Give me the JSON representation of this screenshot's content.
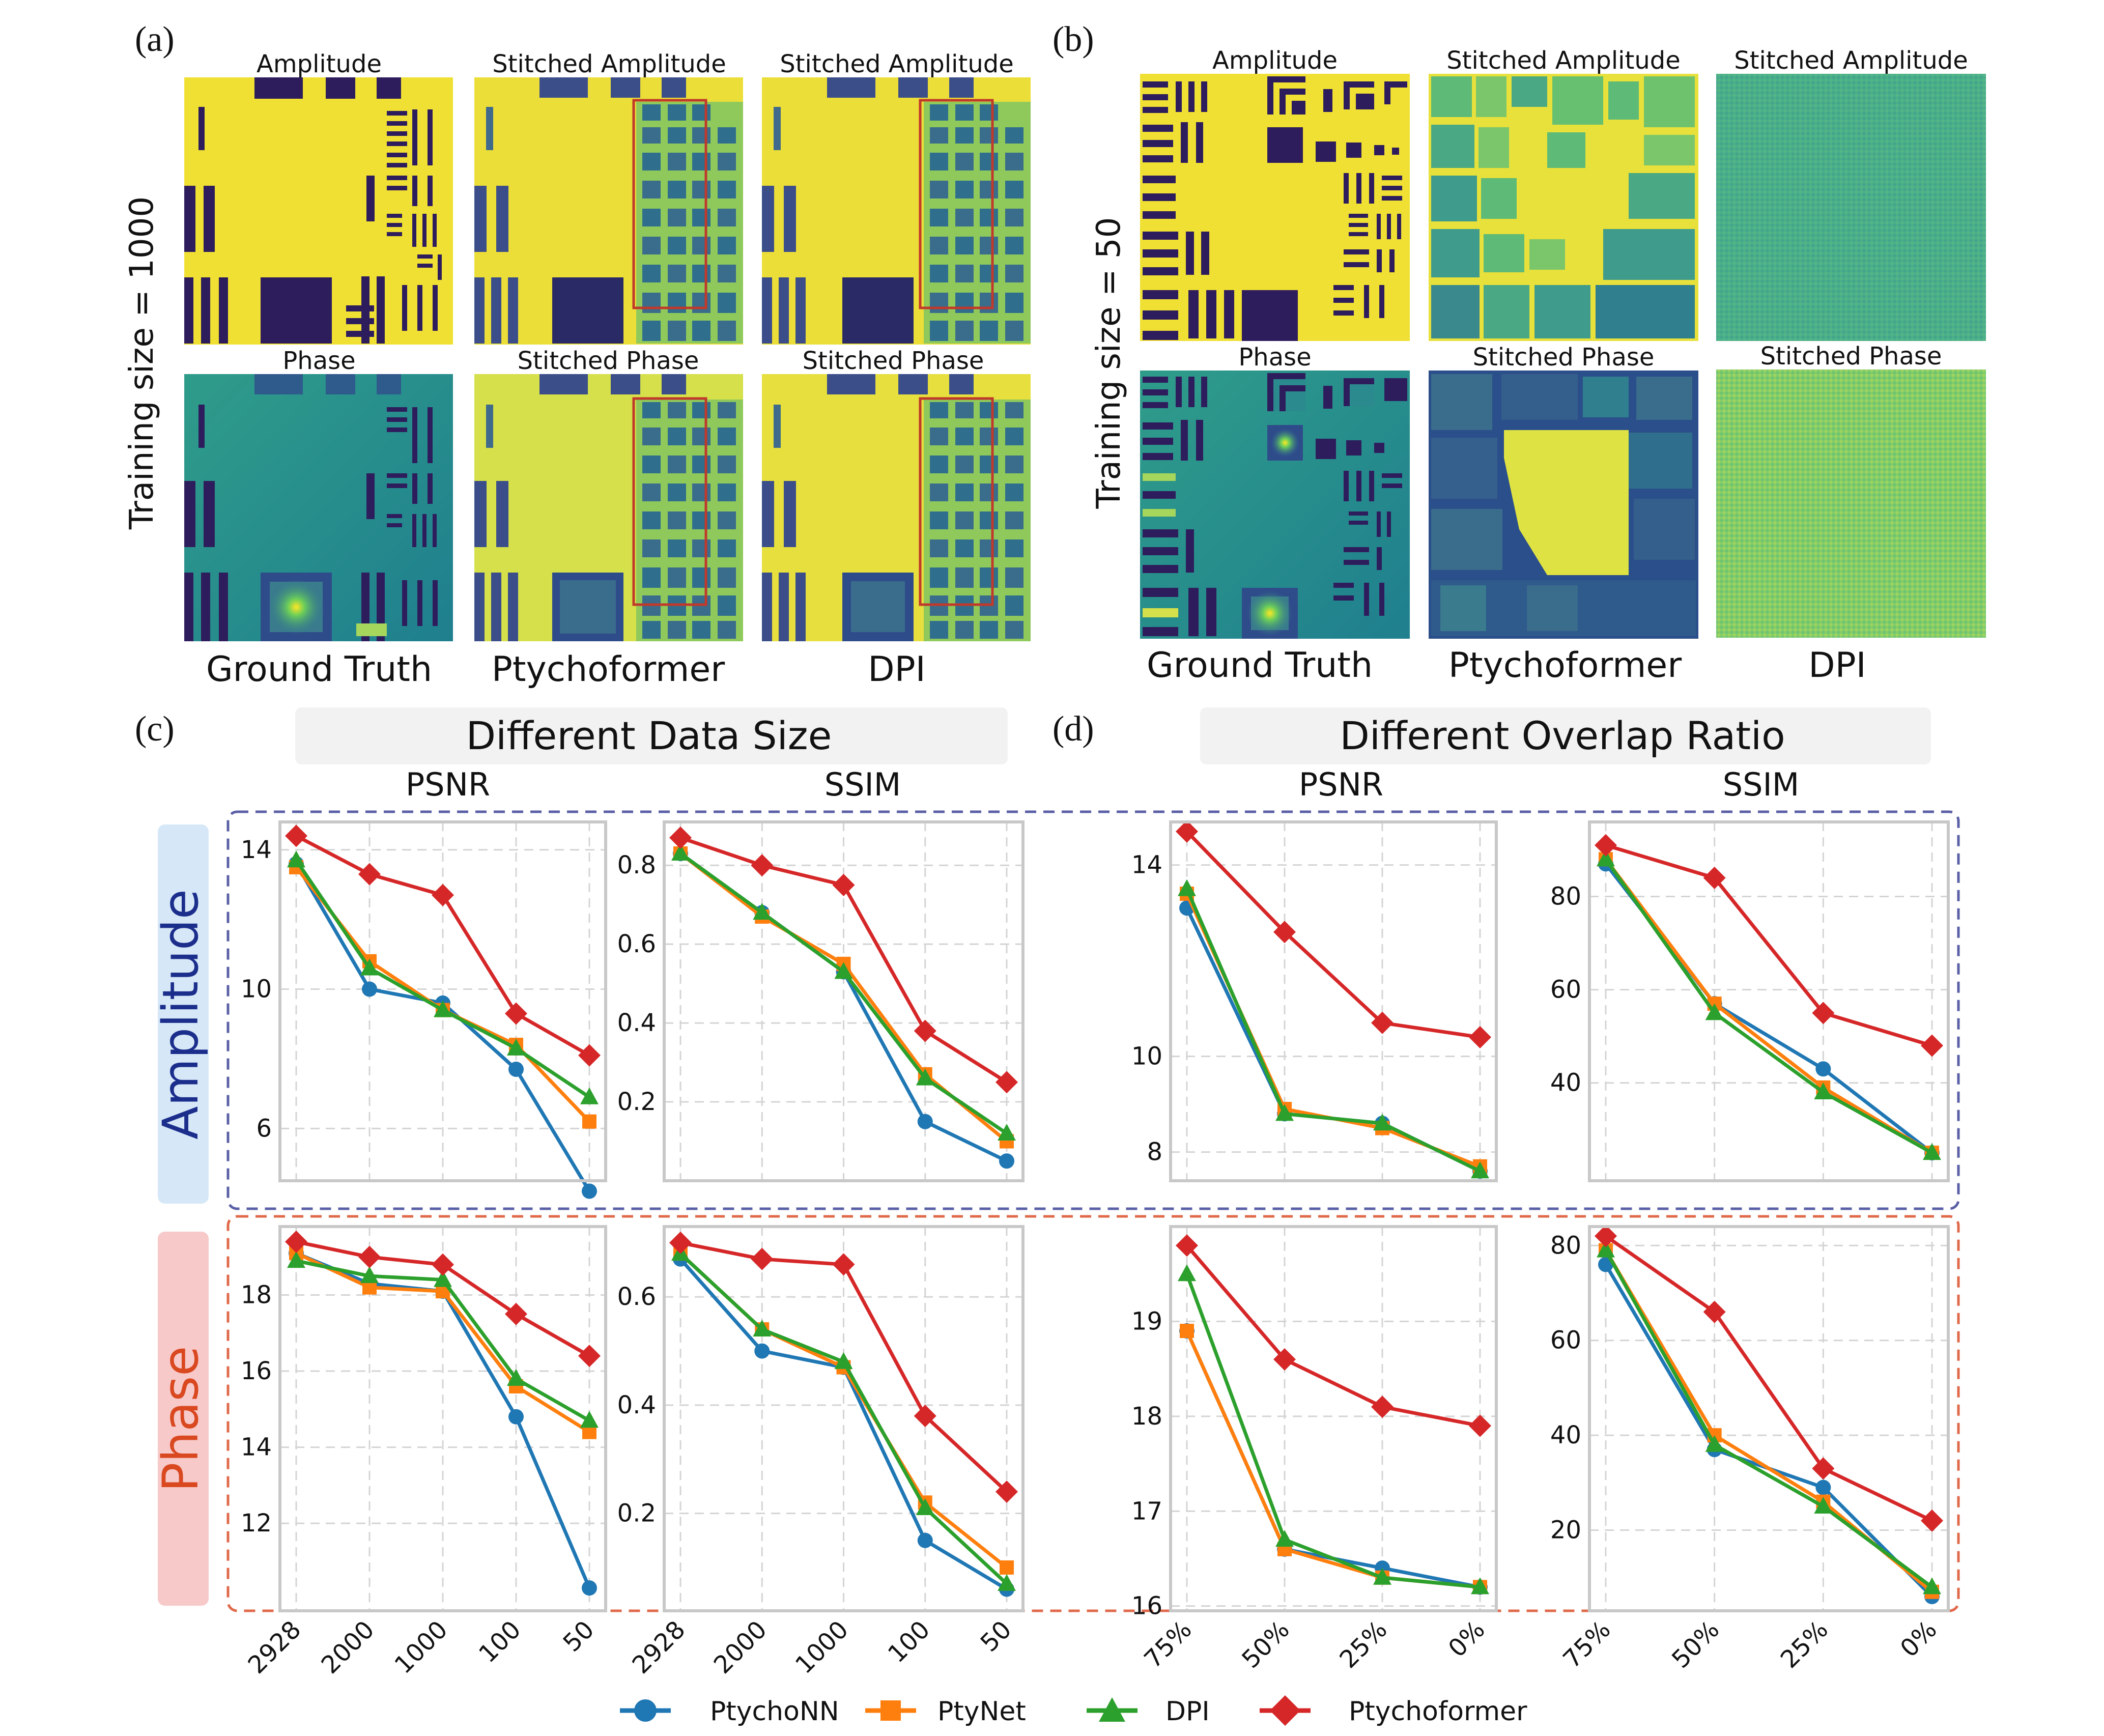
{
  "panels": {
    "a": {
      "letter": "(a)",
      "training_label": "Training size = 1000",
      "titles": {
        "gt_amp": "Amplitude",
        "pf_amp": "Stitched Amplitude",
        "dpi_amp": "Stitched Amplitude",
        "gt_ph": "Phase",
        "pf_ph": "Stitched Phase",
        "dpi_ph": "Stitched Phase"
      },
      "methods": [
        "Ground Truth",
        "Ptychoformer",
        "DPI"
      ]
    },
    "b": {
      "letter": "(b)",
      "training_label": "Training size = 50",
      "titles": {
        "gt_amp": "Amplitude",
        "pf_amp": "Stitched Amplitude",
        "dpi_amp": "Stitched Amplitude",
        "gt_ph": "Phase",
        "pf_ph": "Stitched Phase",
        "dpi_ph": "Stitched Phase"
      },
      "methods": [
        "Ground Truth",
        "Ptychoformer",
        "DPI"
      ]
    },
    "c": {
      "letter": "(c)",
      "header": "Different Data Size"
    },
    "d": {
      "letter": "(d)",
      "header": "Different Overlap Ratio"
    }
  },
  "row_labels": {
    "amplitude": "Amplitude",
    "phase": "Phase"
  },
  "metric_labels": [
    "PSNR",
    "SSIM",
    "PSNR",
    "SSIM"
  ],
  "colors": {
    "PtychoNN": "#1f77b4",
    "PtyNet": "#ff7f0e",
    "DPI": "#2ca02c",
    "Ptychoformer": "#d62728",
    "amp_box": "#5a5fa6",
    "phase_box": "#e0694a",
    "amp_tab": "#d6e8f7",
    "phase_tab": "#f7c9c9",
    "header_bg": "#f2f2f2",
    "axes_frame": "#c8c8c8",
    "grid": "#d4d4d4"
  },
  "legend": [
    {
      "name": "PtychoNN",
      "marker": "circle"
    },
    {
      "name": "PtyNet",
      "marker": "square"
    },
    {
      "name": "DPI",
      "marker": "triangle"
    },
    {
      "name": "Ptychoformer",
      "marker": "diamond"
    }
  ],
  "chart_data": [
    {
      "id": "c-amp-psnr",
      "type": "line",
      "title": "PSNR",
      "categories": [
        "2928",
        "2000",
        "1000",
        "100",
        "50"
      ],
      "ylim": [
        4.5,
        14.8
      ],
      "yticks": [
        6,
        10,
        14
      ],
      "grid": true,
      "series": [
        {
          "name": "PtychoNN",
          "values": [
            13.6,
            10.0,
            9.6,
            7.7,
            4.2
          ]
        },
        {
          "name": "PtyNet",
          "values": [
            13.5,
            10.8,
            9.4,
            8.4,
            6.2
          ]
        },
        {
          "name": "DPI",
          "values": [
            13.7,
            10.6,
            9.4,
            8.3,
            6.9
          ]
        },
        {
          "name": "Ptychoformer",
          "values": [
            14.4,
            13.3,
            12.7,
            9.3,
            8.1
          ]
        }
      ]
    },
    {
      "id": "c-amp-ssim",
      "type": "line",
      "title": "SSIM",
      "categories": [
        "2928",
        "2000",
        "1000",
        "100",
        "50"
      ],
      "ylim": [
        0.0,
        0.91
      ],
      "yticks": [
        0.2,
        0.4,
        0.6,
        0.8
      ],
      "grid": true,
      "series": [
        {
          "name": "PtychoNN",
          "values": [
            0.83,
            0.68,
            0.53,
            0.15,
            0.05
          ]
        },
        {
          "name": "PtyNet",
          "values": [
            0.83,
            0.67,
            0.55,
            0.27,
            0.1
          ]
        },
        {
          "name": "DPI",
          "values": [
            0.83,
            0.68,
            0.53,
            0.26,
            0.12
          ]
        },
        {
          "name": "Ptychoformer",
          "values": [
            0.87,
            0.8,
            0.75,
            0.38,
            0.25
          ]
        }
      ]
    },
    {
      "id": "d-amp-psnr",
      "type": "line",
      "title": "PSNR",
      "categories": [
        "75%",
        "50%",
        "25%",
        "0%"
      ],
      "ylim": [
        7.4,
        14.9
      ],
      "yticks": [
        8,
        10,
        14
      ],
      "grid": true,
      "series": [
        {
          "name": "PtychoNN",
          "values": [
            13.1,
            8.8,
            8.6,
            7.6
          ]
        },
        {
          "name": "PtyNet",
          "values": [
            13.4,
            8.9,
            8.5,
            7.7
          ]
        },
        {
          "name": "DPI",
          "values": [
            13.5,
            8.8,
            8.6,
            7.6
          ]
        },
        {
          "name": "Ptychoformer",
          "values": [
            14.7,
            12.6,
            10.7,
            10.4
          ]
        }
      ]
    },
    {
      "id": "d-amp-ssim",
      "type": "line",
      "title": "SSIM",
      "categories": [
        "75%",
        "50%",
        "25%",
        "0%"
      ],
      "ylim": [
        19,
        96
      ],
      "yticks": [
        40,
        60,
        80
      ],
      "grid": true,
      "series": [
        {
          "name": "PtychoNN",
          "values": [
            87,
            57,
            43,
            25
          ]
        },
        {
          "name": "PtyNet",
          "values": [
            88,
            57,
            39,
            25
          ]
        },
        {
          "name": "DPI",
          "values": [
            88,
            55,
            38,
            25
          ]
        },
        {
          "name": "Ptychoformer",
          "values": [
            91,
            84,
            55,
            48
          ]
        }
      ]
    },
    {
      "id": "c-ph-psnr",
      "type": "line",
      "title": "PSNR",
      "categories": [
        "2928",
        "2000",
        "1000",
        "100",
        "50"
      ],
      "ylim": [
        9.7,
        19.8
      ],
      "yticks": [
        12,
        14,
        16,
        18
      ],
      "grid": true,
      "series": [
        {
          "name": "PtychoNN",
          "values": [
            19.1,
            18.3,
            18.1,
            14.8,
            10.3
          ]
        },
        {
          "name": "PtyNet",
          "values": [
            19.1,
            18.2,
            18.1,
            15.6,
            14.4
          ]
        },
        {
          "name": "DPI",
          "values": [
            18.9,
            18.5,
            18.4,
            15.8,
            14.7
          ]
        },
        {
          "name": "Ptychoformer",
          "values": [
            19.4,
            19.0,
            18.8,
            17.5,
            16.4
          ]
        }
      ]
    },
    {
      "id": "c-ph-ssim",
      "type": "line",
      "title": "SSIM",
      "categories": [
        "2928",
        "2000",
        "1000",
        "100",
        "50"
      ],
      "ylim": [
        0.02,
        0.73
      ],
      "yticks": [
        0.2,
        0.4,
        0.6
      ],
      "grid": true,
      "series": [
        {
          "name": "PtychoNN",
          "values": [
            0.67,
            0.5,
            0.47,
            0.15,
            0.06
          ]
        },
        {
          "name": "PtyNet",
          "values": [
            0.68,
            0.54,
            0.47,
            0.22,
            0.1
          ]
        },
        {
          "name": "DPI",
          "values": [
            0.68,
            0.54,
            0.48,
            0.21,
            0.07
          ]
        },
        {
          "name": "Ptychoformer",
          "values": [
            0.7,
            0.67,
            0.66,
            0.38,
            0.24
          ]
        }
      ]
    },
    {
      "id": "d-ph-psnr",
      "type": "line",
      "title": "PSNR",
      "categories": [
        "75%",
        "50%",
        "25%",
        "0%"
      ],
      "ylim": [
        15.95,
        20.0
      ],
      "yticks": [
        16,
        17,
        18,
        19
      ],
      "grid": true,
      "series": [
        {
          "name": "PtychoNN",
          "values": [
            18.9,
            16.6,
            16.4,
            16.2
          ]
        },
        {
          "name": "PtyNet",
          "values": [
            18.9,
            16.6,
            16.3,
            16.2
          ]
        },
        {
          "name": "DPI",
          "values": [
            19.5,
            16.7,
            16.3,
            16.2
          ]
        },
        {
          "name": "Ptychoformer",
          "values": [
            19.8,
            18.6,
            18.1,
            17.9
          ]
        }
      ]
    },
    {
      "id": "d-ph-ssim",
      "type": "line",
      "title": "SSIM",
      "categories": [
        "75%",
        "50%",
        "25%",
        "0%"
      ],
      "ylim": [
        3,
        84
      ],
      "yticks": [
        20,
        40,
        60,
        80
      ],
      "grid": true,
      "series": [
        {
          "name": "PtychoNN",
          "values": [
            76,
            37,
            29,
            6
          ]
        },
        {
          "name": "PtyNet",
          "values": [
            79,
            40,
            26,
            7
          ]
        },
        {
          "name": "DPI",
          "values": [
            79,
            38,
            25,
            8
          ]
        },
        {
          "name": "Ptychoformer",
          "values": [
            82,
            66,
            33,
            22
          ]
        }
      ]
    }
  ]
}
